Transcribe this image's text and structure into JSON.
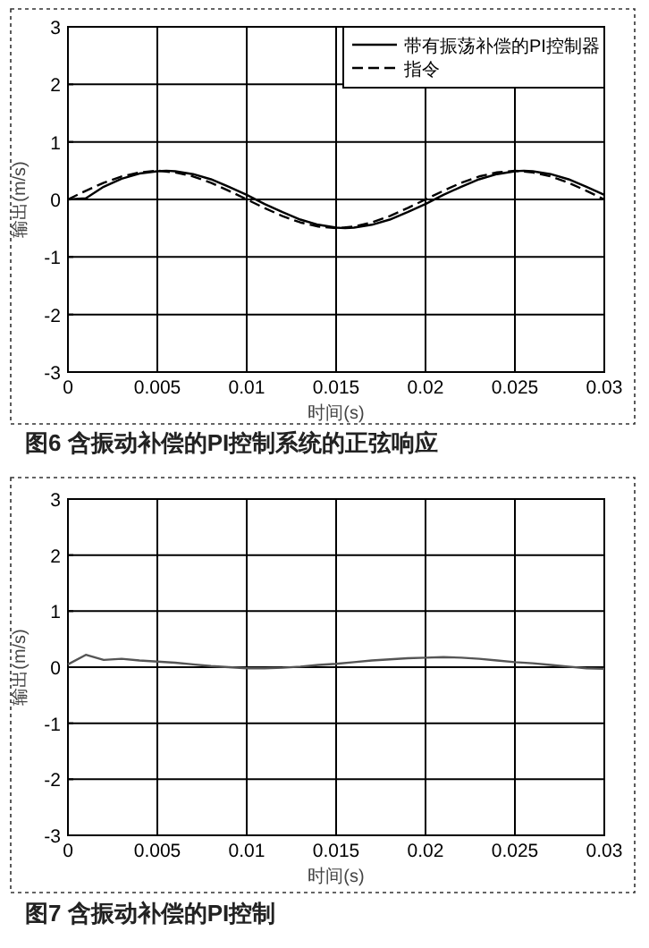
{
  "chart_data": [
    {
      "type": "line",
      "title": "图6 含振动补偿的PI控制系统的正弦响应",
      "xlabel": "时间(s)",
      "ylabel": "输出(m/s)",
      "xlim": [
        0,
        0.03
      ],
      "ylim": [
        -3,
        3
      ],
      "xticks": [
        0,
        0.005,
        0.01,
        0.015,
        0.02,
        0.025,
        0.03
      ],
      "yticks": [
        -3,
        -2,
        -1,
        0,
        1,
        2,
        3
      ],
      "grid": true,
      "legend": "top right",
      "series": [
        {
          "name": "带有振荡补偿的PI控制器",
          "color": "#000000",
          "line_style": "solid",
          "x": [
            0,
            0.001,
            0.002,
            0.003,
            0.004,
            0.005,
            0.0055,
            0.006,
            0.007,
            0.008,
            0.009,
            0.01,
            0.011,
            0.012,
            0.013,
            0.014,
            0.015,
            0.0155,
            0.016,
            0.017,
            0.018,
            0.019,
            0.02,
            0.021,
            0.022,
            0.023,
            0.024,
            0.025,
            0.0255,
            0.026,
            0.027,
            0.028,
            0.029,
            0.03
          ],
          "values": [
            0,
            0.02,
            0.22,
            0.36,
            0.45,
            0.49,
            0.5,
            0.49,
            0.44,
            0.35,
            0.22,
            0.08,
            -0.08,
            -0.22,
            -0.35,
            -0.44,
            -0.49,
            -0.5,
            -0.49,
            -0.44,
            -0.35,
            -0.22,
            -0.08,
            0.08,
            0.22,
            0.35,
            0.44,
            0.49,
            0.5,
            0.49,
            0.44,
            0.35,
            0.22,
            0.08
          ]
        },
        {
          "name": "指令",
          "color": "#000000",
          "line_style": "dashed",
          "x": [
            0,
            0.001,
            0.002,
            0.003,
            0.004,
            0.005,
            0.006,
            0.007,
            0.008,
            0.009,
            0.01,
            0.011,
            0.012,
            0.013,
            0.014,
            0.015,
            0.016,
            0.017,
            0.018,
            0.019,
            0.02,
            0.021,
            0.022,
            0.023,
            0.024,
            0.025,
            0.026,
            0.027,
            0.028,
            0.029,
            0.03
          ],
          "values": [
            0,
            0.15,
            0.29,
            0.4,
            0.47,
            0.5,
            0.47,
            0.4,
            0.29,
            0.15,
            0,
            -0.15,
            -0.29,
            -0.4,
            -0.47,
            -0.5,
            -0.47,
            -0.4,
            -0.29,
            -0.15,
            0,
            0.15,
            0.29,
            0.4,
            0.47,
            0.5,
            0.47,
            0.4,
            0.29,
            0.15,
            0
          ]
        }
      ]
    },
    {
      "type": "line",
      "title": "图7 含振动补偿的PI控制",
      "xlabel": "时间(s)",
      "ylabel": "输出(m/s)",
      "xlim": [
        0,
        0.03
      ],
      "ylim": [
        -3,
        3
      ],
      "xticks": [
        0,
        0.005,
        0.01,
        0.015,
        0.02,
        0.025,
        0.03
      ],
      "yticks": [
        -3,
        -2,
        -1,
        0,
        1,
        2,
        3
      ],
      "grid": true,
      "series": [
        {
          "color": "#555555",
          "line_style": "solid",
          "x": [
            0,
            0.001,
            0.002,
            0.003,
            0.004,
            0.005,
            0.006,
            0.007,
            0.008,
            0.009,
            0.01,
            0.011,
            0.012,
            0.013,
            0.014,
            0.015,
            0.016,
            0.017,
            0.018,
            0.019,
            0.02,
            0.021,
            0.022,
            0.023,
            0.024,
            0.025,
            0.026,
            0.027,
            0.028,
            0.029,
            0.03
          ],
          "values": [
            0.05,
            0.22,
            0.13,
            0.15,
            0.12,
            0.1,
            0.08,
            0.05,
            0.02,
            0,
            -0.02,
            -0.02,
            -0.01,
            0.01,
            0.04,
            0.06,
            0.09,
            0.12,
            0.14,
            0.16,
            0.17,
            0.18,
            0.17,
            0.15,
            0.12,
            0.09,
            0.07,
            0.04,
            0.01,
            -0.02,
            -0.03
          ]
        }
      ]
    }
  ]
}
